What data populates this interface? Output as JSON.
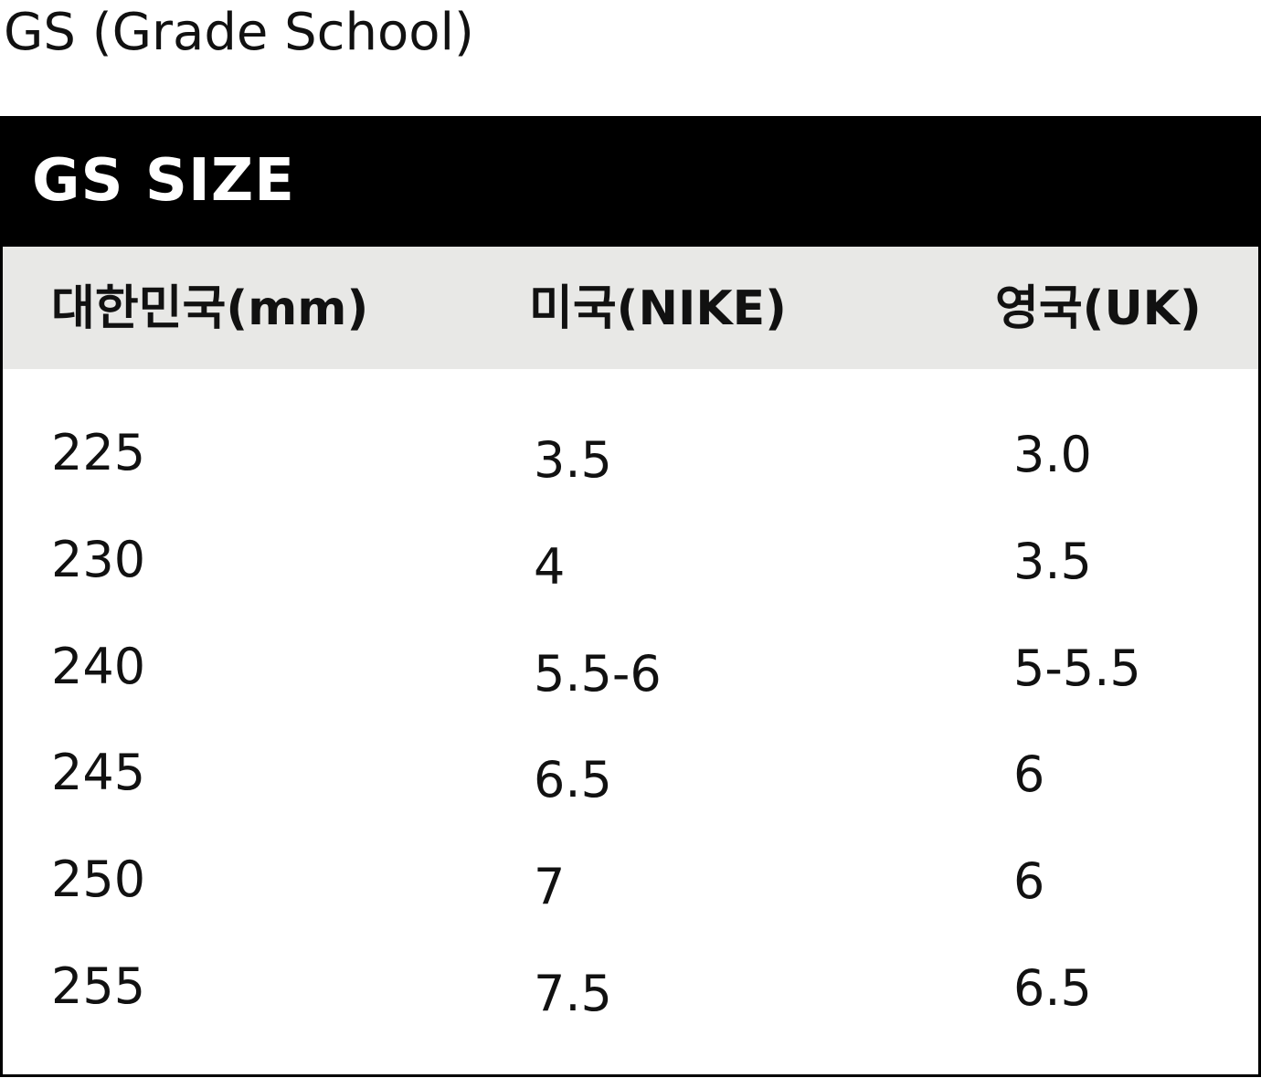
{
  "page": {
    "title": "GS (Grade School)"
  },
  "table": {
    "header_title": "GS SIZE",
    "columns": [
      "대한민국(mm)",
      "미국(NIKE)",
      "영국(UK)"
    ],
    "rows": [
      [
        "225",
        "3.5",
        "3.0"
      ],
      [
        "230",
        "4",
        "3.5"
      ],
      [
        "240",
        "5.5-6",
        "5-5.5"
      ],
      [
        "245",
        "6.5",
        "6"
      ],
      [
        "250",
        "7",
        "6"
      ],
      [
        "255",
        "7.5",
        "6.5"
      ]
    ]
  },
  "colors": {
    "header_background": "#000000",
    "header_text": "#ffffff",
    "column_header_background": "#e8e8e6",
    "border": "#000000",
    "text": "#111111"
  }
}
